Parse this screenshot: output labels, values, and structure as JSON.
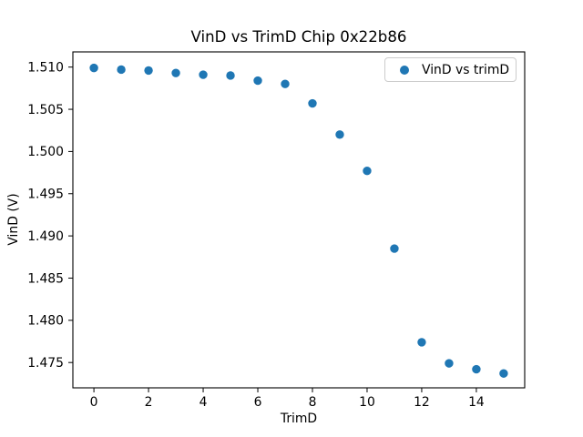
{
  "figure": {
    "background": "#ffffff"
  },
  "chart_data": {
    "type": "scatter",
    "title": "VinD vs TrimD Chip 0x22b86",
    "xlabel": "TrimD",
    "ylabel": "VinD (V)",
    "legend": {
      "position": "upper right",
      "entries": [
        "VinD vs trimD"
      ]
    },
    "marker_color": "#1f77b4",
    "axis_color": "#000000",
    "legend_border_color": "#cccccc",
    "grid": false,
    "x": [
      0,
      1,
      2,
      3,
      4,
      5,
      6,
      7,
      8,
      9,
      10,
      11,
      12,
      13,
      14,
      15
    ],
    "y": [
      1.5099,
      1.5097,
      1.5096,
      1.5093,
      1.5091,
      1.509,
      1.5084,
      1.508,
      1.5057,
      1.502,
      1.4977,
      1.4885,
      1.4774,
      1.4749,
      1.4742,
      1.4737
    ],
    "xticks": [
      0,
      2,
      4,
      6,
      8,
      10,
      12,
      14
    ],
    "yticks": [
      1.475,
      1.48,
      1.485,
      1.49,
      1.495,
      1.5,
      1.505,
      1.51
    ],
    "xlim": [
      -0.77,
      15.77
    ],
    "ylim": [
      1.472,
      1.5118
    ]
  }
}
